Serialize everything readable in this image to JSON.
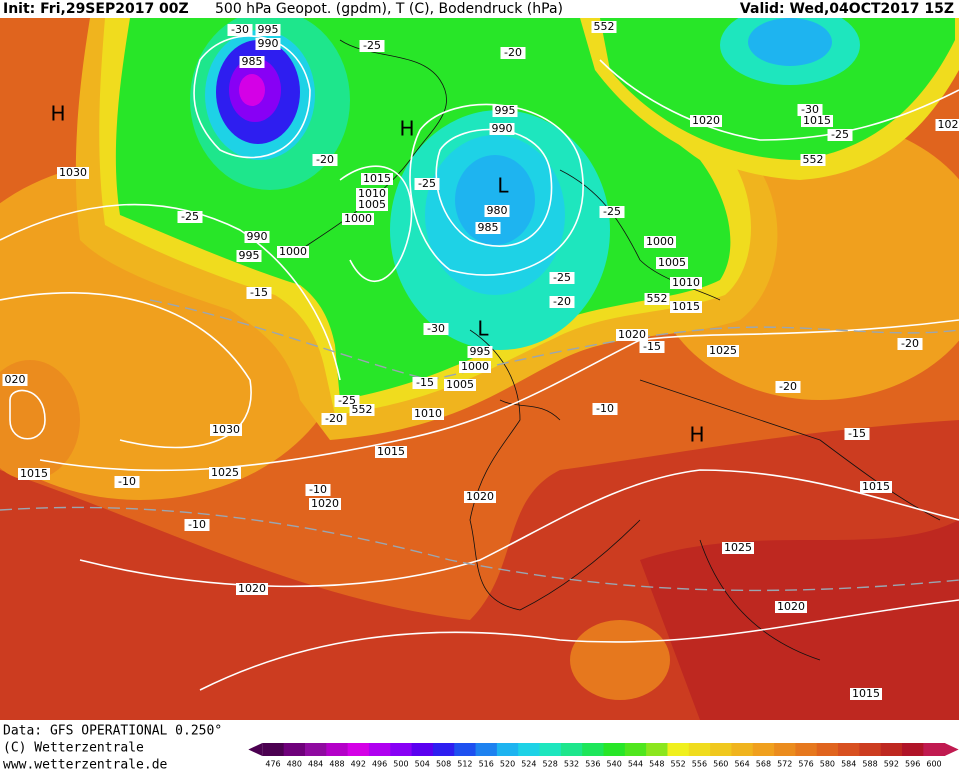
{
  "header": {
    "init": "Init: Fri,29SEP2017 00Z",
    "title": "500 hPa Geopot. (gpdm), T (C), Bodendruck (hPa)",
    "valid": "Valid: Wed,04OCT2017 15Z"
  },
  "map": {
    "labels": [
      "H",
      "H",
      "L",
      "L",
      "H",
      "1030",
      "995",
      "990",
      "985",
      "1015",
      "1010",
      "1005",
      "1000",
      "990",
      "995",
      "1000",
      "995",
      "990",
      "980",
      "985",
      "1000",
      "1005",
      "1010",
      "1015",
      "1020",
      "1015",
      "1020",
      "1025",
      "995",
      "1000",
      "1005",
      "1010",
      "1015",
      "1030",
      "1025",
      "1020",
      "1020",
      "1015",
      "1025",
      "1020",
      "1020",
      "1015",
      "1015",
      "020",
      "102",
      "-30",
      "-25",
      "-20",
      "-20",
      "-25",
      "-25",
      "-25",
      "-15",
      "-25",
      "-20",
      "-30",
      "-15",
      "-15",
      "-25",
      "-20",
      "-10",
      "-30",
      "-25",
      "-20",
      "-20",
      "-15",
      "-10",
      "-10",
      "-10",
      "552",
      "552",
      "552",
      "552"
    ]
  },
  "footer": {
    "data": "Data: GFS OPERATIONAL 0.250°",
    "copyright": "(C) Wetterzentrale",
    "url": "www.wetterzentrale.de"
  },
  "legend": {
    "ticks": [
      "476",
      "480",
      "484",
      "488",
      "492",
      "496",
      "500",
      "504",
      "508",
      "512",
      "516",
      "520",
      "524",
      "528",
      "532",
      "536",
      "540",
      "544",
      "548",
      "552",
      "556",
      "560",
      "564",
      "568",
      "572",
      "576",
      "580",
      "584",
      "588",
      "592",
      "596",
      "600"
    ],
    "colors": [
      "#4b0050",
      "#6e007a",
      "#8f0aa0",
      "#b400c8",
      "#d400e6",
      "#b000f0",
      "#8800f5",
      "#5a00f0",
      "#2e1ef0",
      "#1e50f0",
      "#1e82f0",
      "#1eb4f0",
      "#1ed2e6",
      "#1ee6be",
      "#1ee68c",
      "#1ee65a",
      "#28e628",
      "#50e61e",
      "#8ce61e",
      "#f0f01e",
      "#f0dc1e",
      "#f0c81e",
      "#f0b41e",
      "#f0a01e",
      "#eb8c1e",
      "#e6781e",
      "#e0641e",
      "#d85020",
      "#cc3c20",
      "#be2820",
      "#b01428",
      "#c01a50"
    ]
  }
}
